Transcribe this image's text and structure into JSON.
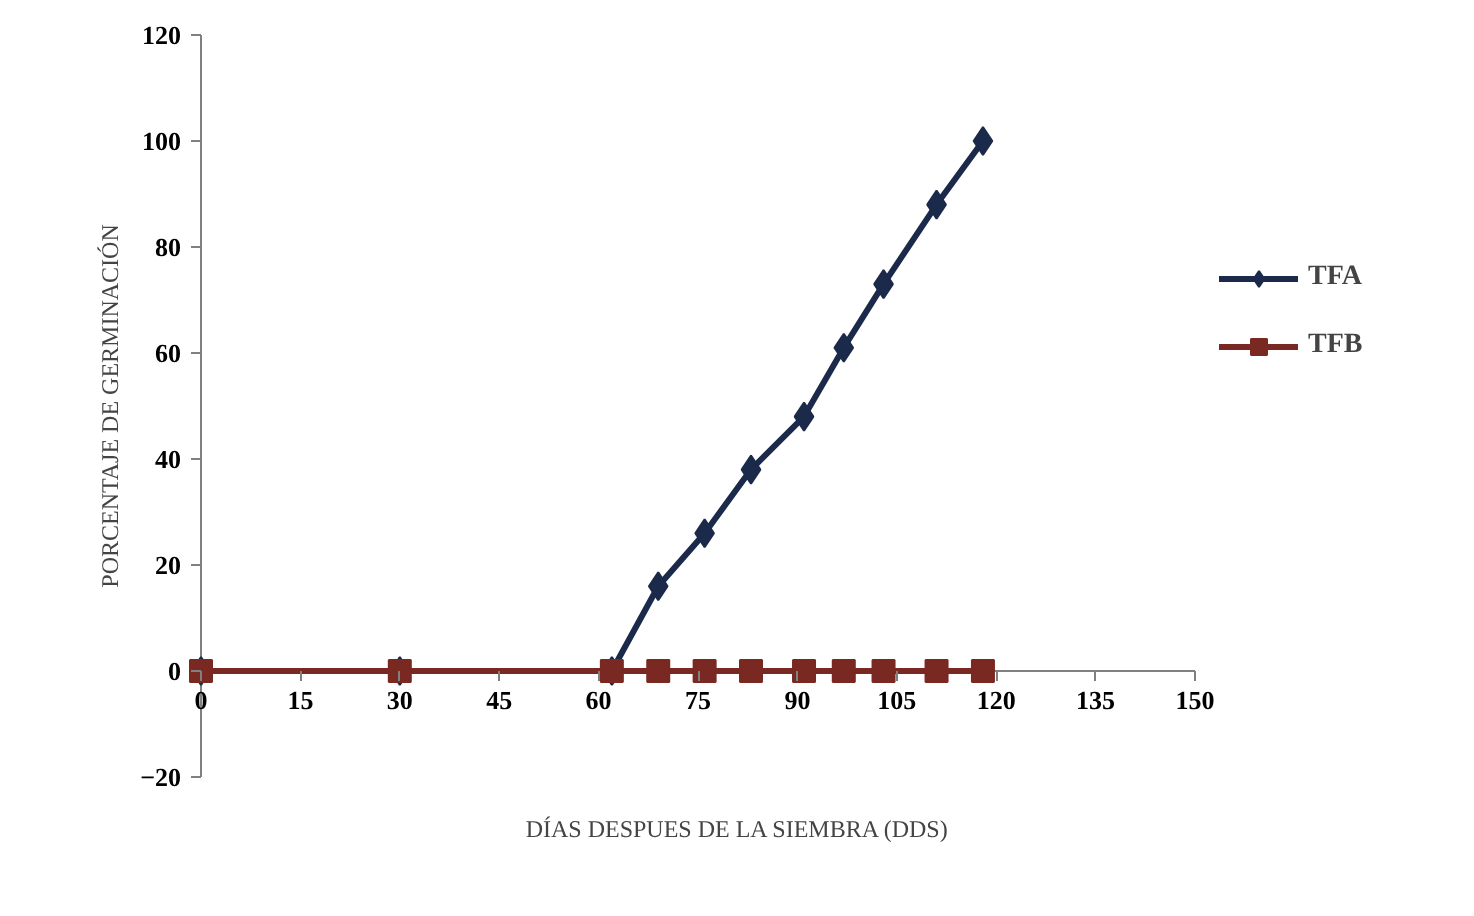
{
  "chart_data": {
    "type": "line",
    "xlabel": "DÍAS DESPUES DE LA SIEMBRA (DDS)",
    "ylabel": "PORCENTAJE DE GERMINACIÓN",
    "x": [
      0,
      30,
      62,
      69,
      76,
      83,
      91,
      97,
      103,
      111,
      118
    ],
    "series": [
      {
        "name": "TFA",
        "color": "#1b2a4a",
        "marker": "diamond",
        "values": [
          0,
          0,
          0,
          16,
          26,
          38,
          48,
          61,
          73,
          88,
          100
        ]
      },
      {
        "name": "TFB",
        "color": "#7a2822",
        "marker": "square",
        "values": [
          0,
          0,
          0,
          0,
          0,
          0,
          0,
          0,
          0,
          0,
          0
        ]
      }
    ],
    "xlim": [
      0,
      150
    ],
    "xticks": [
      0,
      15,
      30,
      45,
      60,
      75,
      90,
      105,
      120,
      135,
      150
    ],
    "ylim": [
      -20,
      120
    ],
    "yticks": [
      -20,
      0,
      20,
      40,
      60,
      80,
      100,
      120
    ],
    "grid": false,
    "legend": "right",
    "line_style": "solid"
  }
}
